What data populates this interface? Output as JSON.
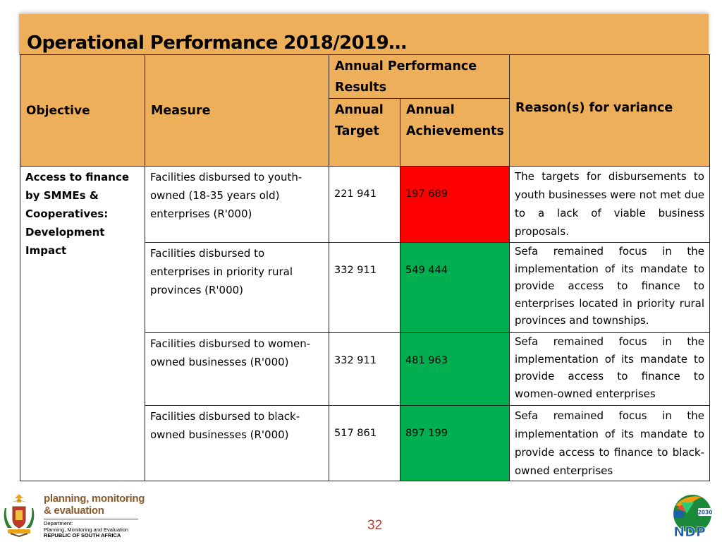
{
  "title": "Operational Performance 2018/2019…",
  "table": {
    "headers": {
      "objective": "Objective",
      "measure": "Measure",
      "results_group": "Annual Performance Results",
      "target": "Annual Target",
      "achievements": "Annual Achievements",
      "reason": "Reason(s) for variance"
    },
    "objective_text": "Access to finance by SMMEs & Cooperatives: Development Impact",
    "rows": [
      {
        "measure": "Facilities disbursed to youth-owned (18-35 years old) enterprises (R'000)",
        "target": "221 941",
        "achievement": "197 689",
        "status": "red",
        "reason": "The targets for disbursements to youth businesses were not met due to a lack of viable business proposals."
      },
      {
        "measure": "Facilities disbursed to enterprises in priority rural provinces (R'000)",
        "target": "332 911",
        "achievement": "549 444",
        "status": "green",
        "reason": "Sefa remained focus in the implementation of its mandate to provide access to finance to enterprises located in priority rural provinces and townships."
      },
      {
        "measure": "Facilities disbursed to women-owned businesses (R'000)",
        "target": "332 911",
        "achievement": "481 963",
        "status": "green",
        "reason": "Sefa remained focus in the implementation of its mandate to provide access to finance to women-owned enterprises"
      },
      {
        "measure": "Facilities disbursed to black-owned businesses (R'000)",
        "target": "517 861",
        "achievement": "897 199",
        "status": "green",
        "reason": "Sefa remained focus in the implementation of its mandate to provide access to finance to black-owned enterprises"
      }
    ]
  },
  "footer": {
    "pme_line1": "planning, monitoring",
    "pme_line2": "& evaluation",
    "dept_label": "Department:",
    "dept_name": "Planning, Monitoring and Evaluation",
    "country": "REPUBLIC OF SOUTH AFRICA",
    "page_number": "32",
    "ndp_label": "NDP",
    "ndp_year": "2030"
  },
  "colors": {
    "header_bg": "#eeaf5a",
    "below_target": "#ff0000",
    "above_target": "#00b050",
    "page_number": "#c0392b",
    "pme_text": "#8b5a2b"
  }
}
